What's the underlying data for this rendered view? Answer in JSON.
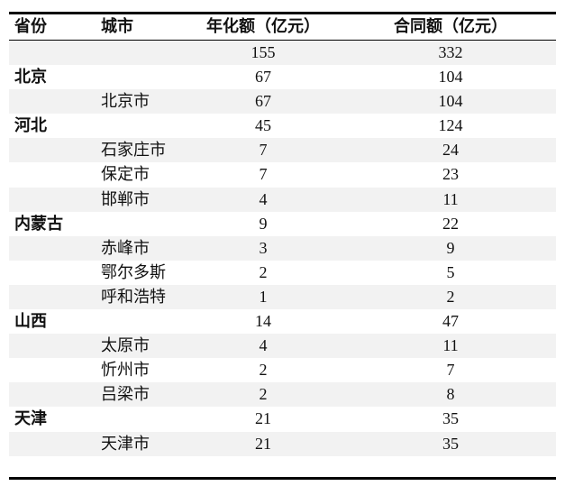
{
  "table": {
    "header": [
      "省份",
      "城市",
      "年化额（亿元）",
      "合同额（亿元）"
    ],
    "rows": [
      [
        null,
        null,
        155,
        332
      ],
      [
        "北京",
        null,
        67,
        104
      ],
      [
        null,
        "北京市",
        67,
        104
      ],
      [
        "河北",
        null,
        45,
        124
      ],
      [
        null,
        "石家庄市",
        7,
        24
      ],
      [
        null,
        "保定市",
        7,
        23
      ],
      [
        null,
        "邯郸市",
        4,
        11
      ],
      [
        "内蒙古",
        null,
        9,
        22
      ],
      [
        null,
        "赤峰市",
        3,
        9
      ],
      [
        null,
        "鄂尔多斯",
        2,
        5
      ],
      [
        null,
        "呼和浩特",
        1,
        2
      ],
      [
        "山西",
        null,
        14,
        47
      ],
      [
        null,
        "太原市",
        4,
        11
      ],
      [
        null,
        "忻州市",
        2,
        7
      ],
      [
        null,
        "吕梁市",
        2,
        8
      ],
      [
        "天津",
        null,
        21,
        35
      ],
      [
        null,
        "天津市",
        21,
        35
      ]
    ]
  }
}
